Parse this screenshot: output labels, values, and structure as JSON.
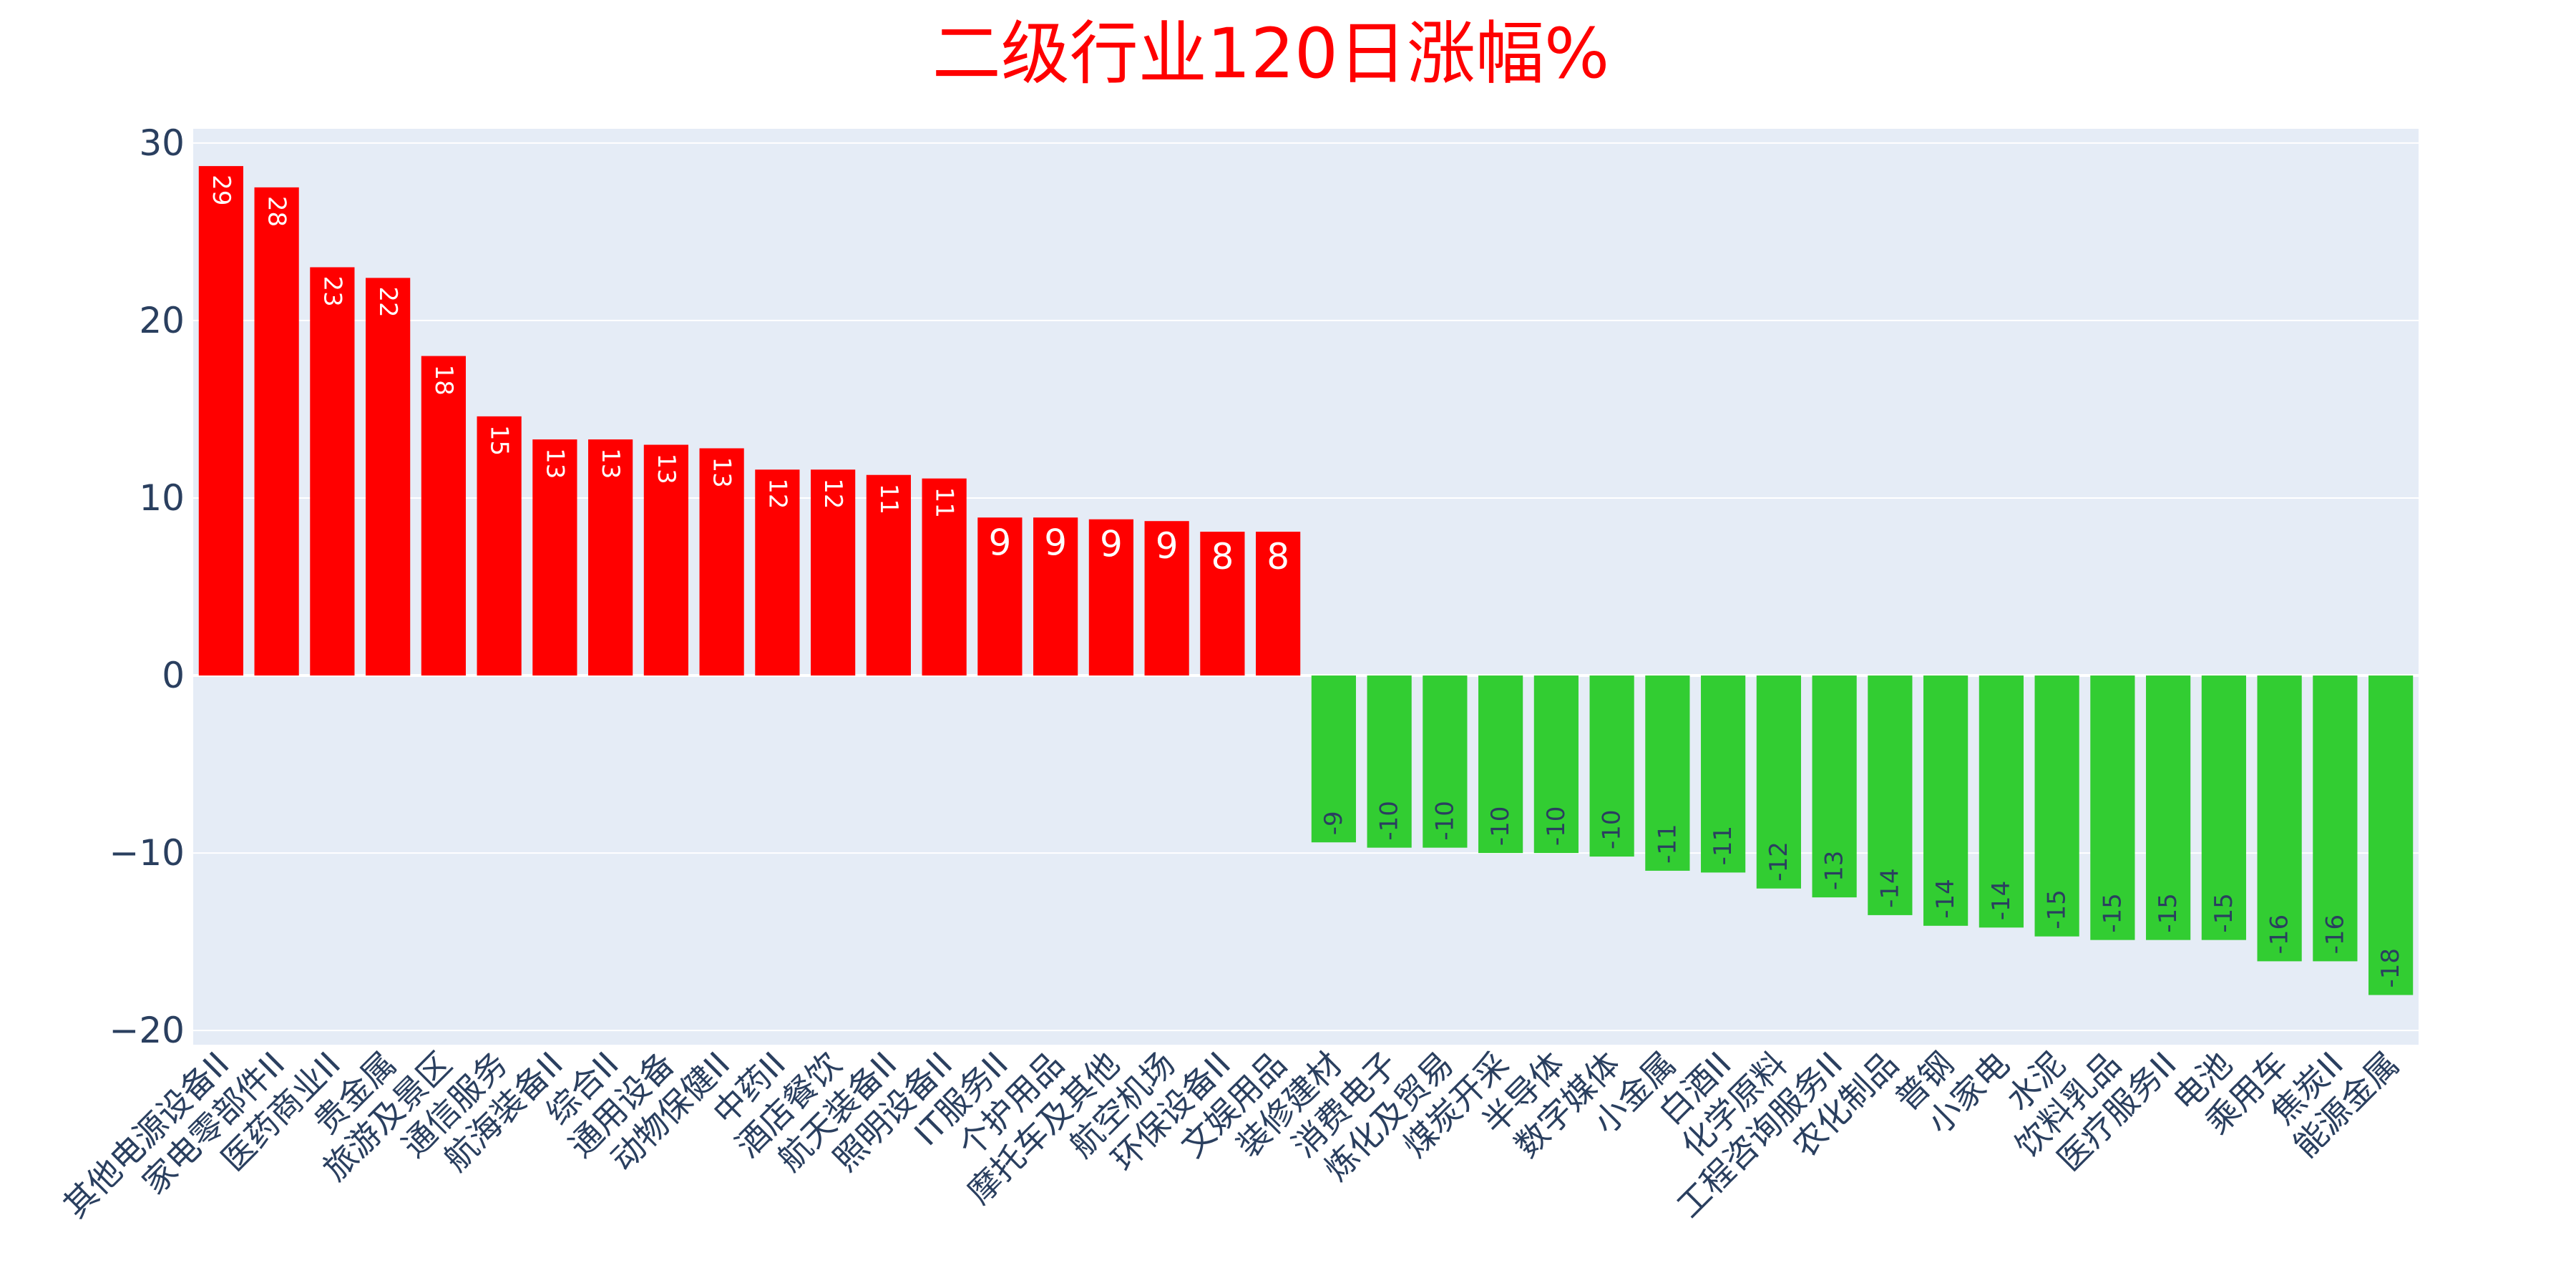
{
  "chart_data": {
    "type": "bar",
    "title": "二级行业120日涨幅%",
    "xlabel": "",
    "ylabel": "",
    "ylim": [
      -20.8,
      30.8
    ],
    "yticks": [
      30,
      20,
      10,
      0,
      -10,
      -20
    ],
    "ytick_labels": [
      "30",
      "20",
      "10",
      "0",
      "−10",
      "−20"
    ],
    "grid": true,
    "colors": {
      "positive": "#ff0000",
      "negative": "#32cd32",
      "plot_bg": "#e5ecf6",
      "grid": "#ffffff",
      "title": "#ff0000",
      "axis_text": "#2a3f5f"
    },
    "categories": [
      "其他电源设备II",
      "家电零部件II",
      "医药商业II",
      "贵金属",
      "旅游及景区",
      "通信服务",
      "航海装备II",
      "综合II",
      "通用设备",
      "动物保健II",
      "中药II",
      "酒店餐饮",
      "航天装备II",
      "照明设备II",
      "IT服务II",
      "个护用品",
      "摩托车及其他",
      "航空机场",
      "环保设备II",
      "文娱用品",
      "装修建材",
      "消费电子",
      "炼化及贸易",
      "煤炭开采",
      "半导体",
      "数字媒体",
      "小金属",
      "白酒II",
      "化学原料",
      "工程咨询服务II",
      "农化制品",
      "普钢",
      "小家电",
      "水泥",
      "饮料乳品",
      "医疗服务II",
      "电池",
      "乘用车",
      "焦炭II",
      "能源金属"
    ],
    "values": [
      28.7,
      27.5,
      23.0,
      22.4,
      18.0,
      14.6,
      13.3,
      13.3,
      13.0,
      12.8,
      11.6,
      11.6,
      11.3,
      11.1,
      8.9,
      8.9,
      8.8,
      8.7,
      8.1,
      8.1,
      -9.4,
      -9.7,
      -9.7,
      -10.0,
      -10.0,
      -10.2,
      -11.0,
      -11.1,
      -12.0,
      -12.5,
      -13.5,
      -14.1,
      -14.2,
      -14.7,
      -14.9,
      -14.9,
      -14.9,
      -16.1,
      -16.1,
      -18.0
    ],
    "value_labels": [
      "29",
      "28",
      "23",
      "22",
      "18",
      "15",
      "13",
      "13",
      "13",
      "13",
      "12",
      "12",
      "11",
      "11",
      "9",
      "9",
      "9",
      "9",
      "8",
      "8",
      "-9",
      "-10",
      "-10",
      "-10",
      "-10",
      "-10",
      "-11",
      "-11",
      "-12",
      "-13",
      "-14",
      "-14",
      "-14",
      "-15",
      "-15",
      "-15",
      "-15",
      "-16",
      "-16",
      "-18"
    ]
  }
}
